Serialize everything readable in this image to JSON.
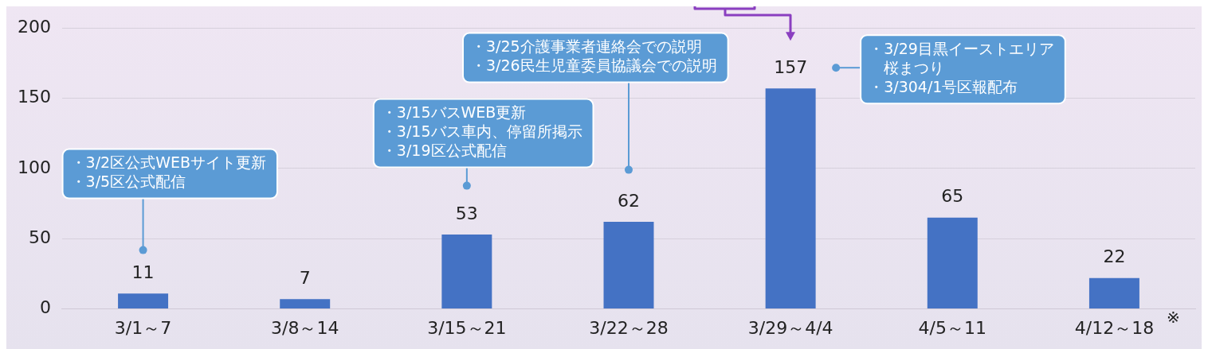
{
  "chart_data": {
    "type": "bar",
    "categories": [
      "3/1～7",
      "3/8～14",
      "3/15～21",
      "3/22～28",
      "3/29～4/4",
      "4/5～11",
      "4/12～18"
    ],
    "values": [
      11,
      7,
      53,
      62,
      157,
      65,
      22
    ],
    "color": "#4472c4",
    "ylim": [
      0,
      200
    ],
    "yticks": [
      0,
      50,
      100,
      150,
      200
    ],
    "grid": "y",
    "legend": false,
    "data_labels": true,
    "annotations": [
      "・3/2区公式WEBサイト更新",
      "・3/5区公式配信",
      "・3/15バスWEB更新",
      "・3/15バス車内、停留所掲示",
      "・3/19区公式配信",
      "・3/25介護事業者連絡会での説明",
      "・3/26民生児童委員協議会での説明",
      "・3/29目黒イーストエリア桜まつり",
      "・3/304/1号区報配布",
      "※"
    ]
  }
}
